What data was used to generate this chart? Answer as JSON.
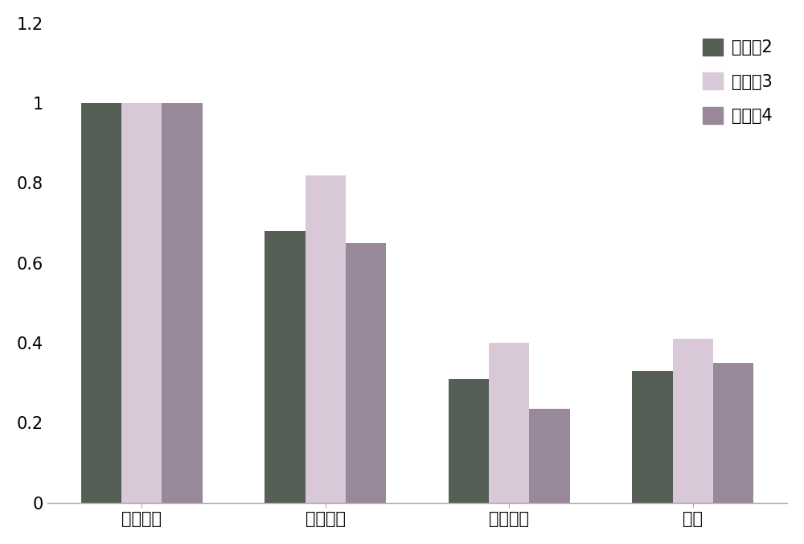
{
  "categories": [
    "正常对照",
    "患者父亲",
    "患者母亲",
    "患者"
  ],
  "series": [
    {
      "label": "外显割2",
      "values": [
        1.0,
        0.68,
        0.31,
        0.33
      ],
      "color": "#555f55"
    },
    {
      "label": "外显割3",
      "values": [
        1.0,
        0.82,
        0.4,
        0.41
      ],
      "color": "#d8c8d8"
    },
    {
      "label": "外显割4",
      "values": [
        1.0,
        0.65,
        0.235,
        0.35
      ],
      "color": "#998899"
    }
  ],
  "ylim": [
    0,
    1.2
  ],
  "yticks": [
    0,
    0.2,
    0.4,
    0.6,
    0.8,
    1.0,
    1.2
  ],
  "bar_width": 0.22,
  "background_color": "#ffffff",
  "legend_fontsize": 15,
  "tick_fontsize": 15
}
